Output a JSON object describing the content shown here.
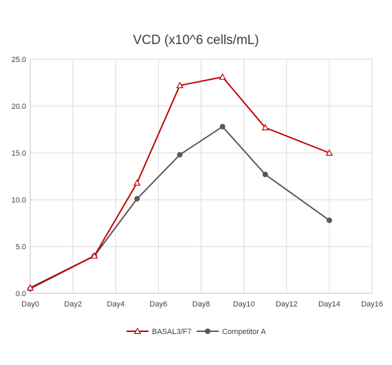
{
  "chart_data": {
    "type": "line",
    "title": "VCD (x10^6 cells/mL)",
    "xlabel": "",
    "ylabel": "",
    "x_tick_labels": [
      "Day0",
      "Day2",
      "Day4",
      "Day6",
      "Day8",
      "Day10",
      "Day12",
      "Day14",
      "Day16"
    ],
    "x_tick_values": [
      0,
      2,
      4,
      6,
      8,
      10,
      12,
      14,
      16
    ],
    "y_tick_labels": [
      "0.0",
      "5.0",
      "10.0",
      "15.0",
      "20.0",
      "25.0"
    ],
    "y_tick_values": [
      0,
      5,
      10,
      15,
      20,
      25
    ],
    "xlim": [
      0,
      16
    ],
    "ylim": [
      0,
      25
    ],
    "grid": "vertical and horizontal",
    "legend_position": "bottom",
    "series": [
      {
        "name": "BASAL3/F7",
        "color": "#c00000",
        "marker": "triangle-open",
        "x": [
          0,
          3,
          5,
          7,
          9,
          11,
          14
        ],
        "y": [
          0.6,
          4.0,
          11.8,
          22.2,
          23.1,
          17.7,
          15.0
        ]
      },
      {
        "name": "Competitor A",
        "color": "#595959",
        "marker": "circle-filled",
        "x": [
          0,
          3,
          5,
          7,
          9,
          11,
          14
        ],
        "y": [
          0.5,
          4.0,
          10.1,
          14.8,
          17.8,
          12.7,
          7.8
        ]
      }
    ]
  }
}
